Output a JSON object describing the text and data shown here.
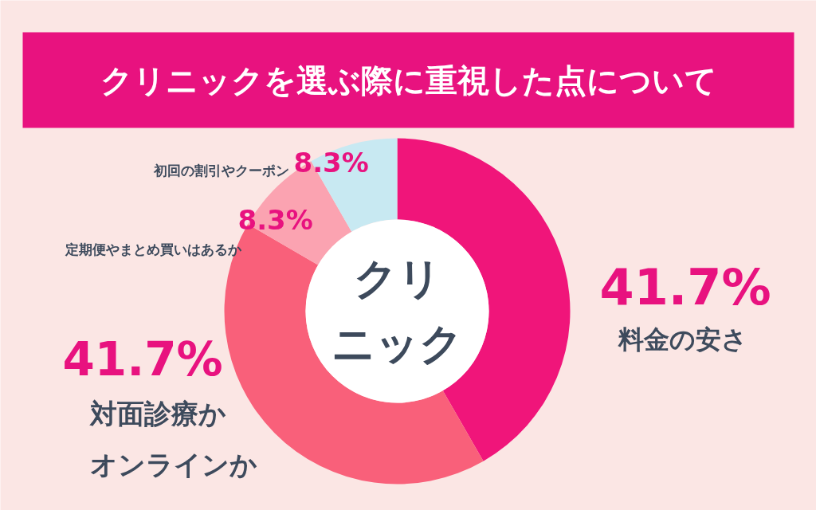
{
  "chart_data": {
    "type": "donut",
    "title": "クリニックを選ぶ際に重視した点について",
    "categories": [
      "料金の安さ",
      "対面診療かオンラインか",
      "定期便やまとめ買いはあるか",
      "初回の割引やクーポン"
    ],
    "values": [
      41.7,
      41.7,
      8.3,
      8.3
    ],
    "colors": [
      "#f0157a",
      "#f9607a",
      "#fba3b1",
      "#c8e9f2"
    ],
    "value_labels": [
      "41.7%",
      "41.7%",
      "8.3%",
      "8.3%"
    ],
    "annotations": [
      "クリニック"
    ]
  }
}
